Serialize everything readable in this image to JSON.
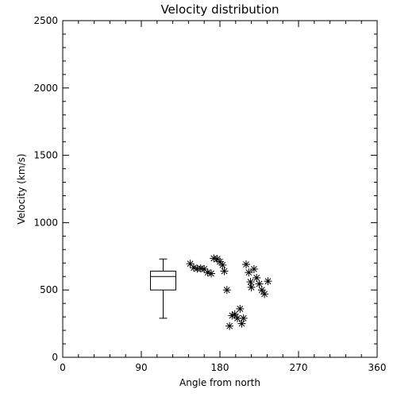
{
  "chart_data": {
    "type": "scatter",
    "title": "Velocity distribution",
    "xlabel": "Angle from north",
    "ylabel": "Velocity (km/s)",
    "xlim": [
      0,
      360
    ],
    "ylim": [
      0,
      2500
    ],
    "x_ticks": [
      0,
      90,
      180,
      270,
      360
    ],
    "y_ticks": [
      0,
      500,
      1000,
      1500,
      2000,
      2500
    ],
    "grid": false,
    "boxplot": {
      "x": 115,
      "min": 290,
      "q1": 500,
      "median": 600,
      "q3": 640,
      "max": 730
    },
    "series": [
      {
        "marker": "asterisk",
        "points": [
          {
            "x": 146,
            "y": 695
          },
          {
            "x": 150,
            "y": 665
          },
          {
            "x": 154,
            "y": 658
          },
          {
            "x": 158,
            "y": 660
          },
          {
            "x": 162,
            "y": 655
          },
          {
            "x": 166,
            "y": 630
          },
          {
            "x": 170,
            "y": 622
          },
          {
            "x": 173,
            "y": 735
          },
          {
            "x": 177,
            "y": 730
          },
          {
            "x": 180,
            "y": 710
          },
          {
            "x": 183,
            "y": 685
          },
          {
            "x": 185,
            "y": 640
          },
          {
            "x": 188,
            "y": 500
          },
          {
            "x": 191,
            "y": 232
          },
          {
            "x": 194,
            "y": 310
          },
          {
            "x": 197,
            "y": 320
          },
          {
            "x": 200,
            "y": 290
          },
          {
            "x": 203,
            "y": 360
          },
          {
            "x": 205,
            "y": 250
          },
          {
            "x": 207,
            "y": 290
          },
          {
            "x": 210,
            "y": 690
          },
          {
            "x": 213,
            "y": 630
          },
          {
            "x": 215,
            "y": 560
          },
          {
            "x": 216,
            "y": 520
          },
          {
            "x": 219,
            "y": 655
          },
          {
            "x": 222,
            "y": 590
          },
          {
            "x": 225,
            "y": 545
          },
          {
            "x": 228,
            "y": 500
          },
          {
            "x": 231,
            "y": 470
          },
          {
            "x": 235,
            "y": 565
          }
        ]
      }
    ]
  }
}
